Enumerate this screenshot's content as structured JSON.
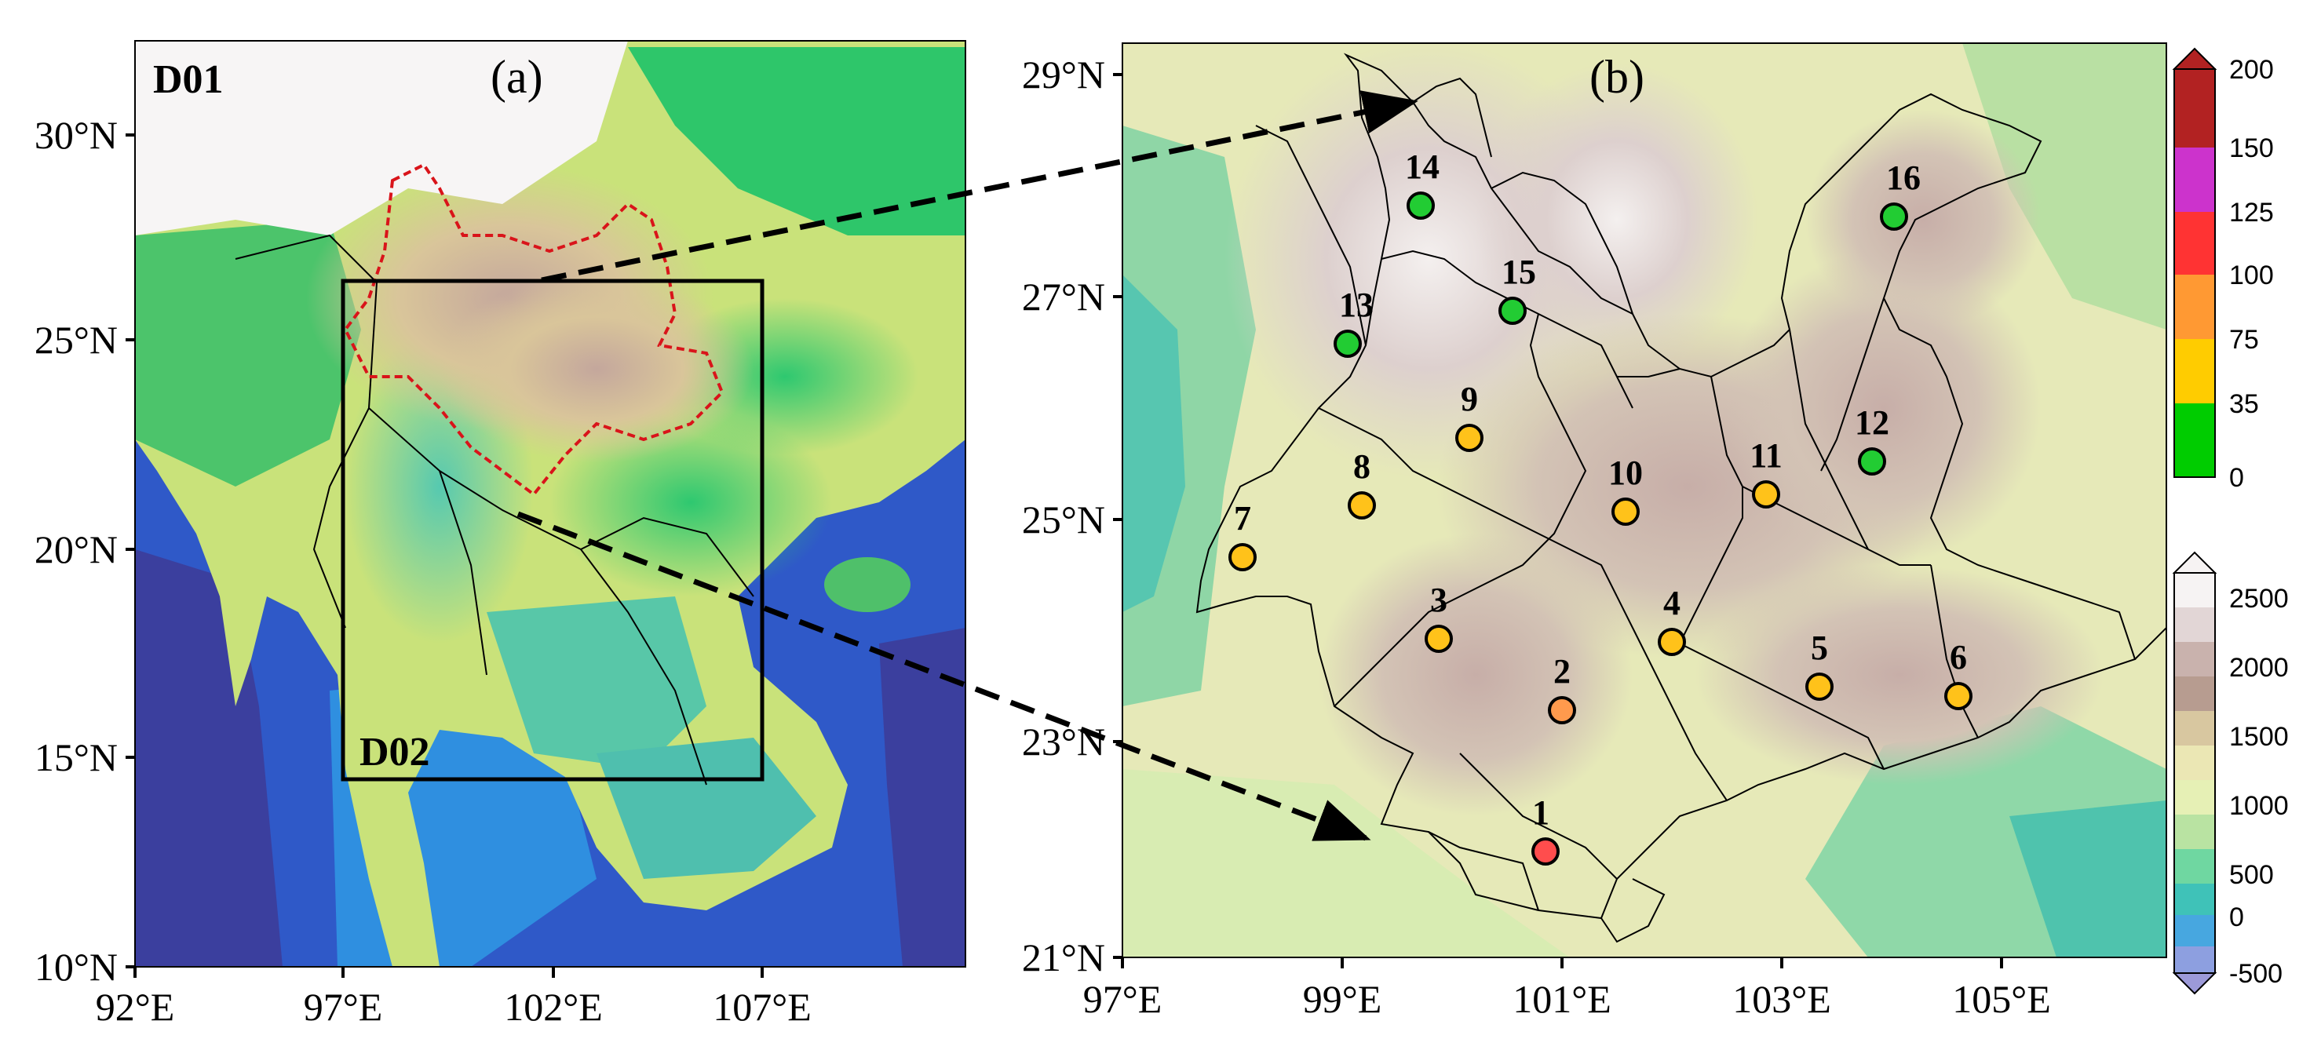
{
  "panel_a": {
    "label": "(a)",
    "domain_d01": "D01",
    "domain_d02": "D02",
    "lat_labels": [
      "30°N",
      "25°N",
      "20°N",
      "15°N",
      "10°N"
    ],
    "lon_labels": [
      "92°E",
      "97°E",
      "102°E",
      "107°E"
    ]
  },
  "panel_b": {
    "label": "(b)",
    "lat_labels": [
      "29°N",
      "27°N",
      "25°N",
      "23°N",
      "21°N"
    ],
    "lon_labels": [
      "97°E",
      "99°E",
      "101°E",
      "103°E",
      "105°E"
    ]
  },
  "precip_colorbar": {
    "labels": [
      "200",
      "150",
      "125",
      "100",
      "75",
      "35",
      "0"
    ],
    "colors": [
      "#b22222",
      "#cc33cc",
      "#ff3333",
      "#ff9933",
      "#ffcc00",
      "#00cc00"
    ]
  },
  "elevation_colorbar": {
    "labels": [
      "2500",
      "2000",
      "1500",
      "1000",
      "500",
      "0",
      "-500"
    ],
    "colors": [
      "#f6f3f3",
      "#e2d6d6",
      "#c9b2ad",
      "#b79c90",
      "#d8c7a0",
      "#ebe7b4",
      "#e6f0b5",
      "#b9e3a2",
      "#6fd7a1",
      "#3fc2b8",
      "#47a7e0",
      "#8d9fe0"
    ]
  },
  "stations": [
    {
      "id": "1",
      "category": "100-125",
      "color": "#ff4d4d"
    },
    {
      "id": "2",
      "category": "75-100",
      "color": "#ff9a4d"
    },
    {
      "id": "3",
      "category": "35-75",
      "color": "#ffc21a"
    },
    {
      "id": "4",
      "category": "35-75",
      "color": "#ffc21a"
    },
    {
      "id": "5",
      "category": "35-75",
      "color": "#ffc21a"
    },
    {
      "id": "6",
      "category": "35-75",
      "color": "#ffc21a"
    },
    {
      "id": "7",
      "category": "35-75",
      "color": "#ffc21a"
    },
    {
      "id": "8",
      "category": "35-75",
      "color": "#ffc21a"
    },
    {
      "id": "9",
      "category": "35-75",
      "color": "#ffc21a"
    },
    {
      "id": "10",
      "category": "35-75",
      "color": "#ffc21a"
    },
    {
      "id": "11",
      "category": "35-75",
      "color": "#ffc21a"
    },
    {
      "id": "12",
      "category": "0-35",
      "color": "#22cc33"
    },
    {
      "id": "13",
      "category": "0-35",
      "color": "#22cc33"
    },
    {
      "id": "14",
      "category": "0-35",
      "color": "#22cc33"
    },
    {
      "id": "15",
      "category": "0-35",
      "color": "#22cc33"
    },
    {
      "id": "16",
      "category": "0-35",
      "color": "#22cc33"
    }
  ]
}
